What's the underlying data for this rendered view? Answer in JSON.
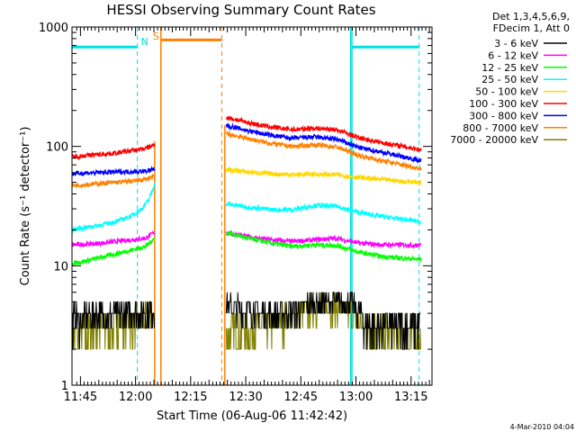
{
  "chart_data": {
    "type": "line",
    "title": "HESSI Observing Summary Count Rates",
    "xlabel": "Start Time (06-Aug-06 11:42:42)",
    "ylabel": "Count Rate (s⁻¹ detector⁻¹)",
    "ylim": [
      1,
      1000
    ],
    "yscale": "log",
    "xlim_minutes_after_11_42_42": [
      0,
      98
    ],
    "xtick_labels": [
      "11:45",
      "12:00",
      "12:15",
      "12:30",
      "12:45",
      "13:00",
      "13:15"
    ],
    "xtick_minutes": [
      2.3,
      17.3,
      32.3,
      47.3,
      62.3,
      77.3,
      92.3
    ],
    "ytick_labels": [
      "1",
      "10",
      "100",
      "1000"
    ],
    "ytick_values": [
      1,
      10,
      100,
      1000
    ],
    "legend_header": [
      "Det 1,3,4,5,6,9,",
      "FDecim 1, Att 0"
    ],
    "legend_placement": "right",
    "footer": "4-Mar-2010 04:04",
    "flags": [
      {
        "label": "N",
        "color": "#00e0e0"
      },
      {
        "label": "S",
        "color": "#ff8000"
      }
    ],
    "series": [
      {
        "name": "3 - 6 keV",
        "color": "#000000",
        "segments": [
          {
            "x": [
              0,
              4,
              8,
              12,
              16,
              20,
              22.5
            ],
            "y": [
              3.6,
              3.7,
              3.8,
              3.9,
              4.0,
              4.1,
              4.3
            ]
          },
          {
            "x": [
              42,
              48,
              54,
              60,
              66,
              72,
              76,
              80,
              84,
              88,
              92,
              95
            ],
            "y": [
              4.5,
              4.3,
              4.0,
              4.2,
              4.8,
              5.0,
              4.8,
              3.2,
              3.3,
              3.2,
              3.3,
              3.3
            ]
          }
        ]
      },
      {
        "name": "6 - 12 keV",
        "color": "#ff00ff",
        "segments": [
          {
            "x": [
              0,
              4,
              8,
              12,
              16,
              20,
              22.5
            ],
            "y": [
              15.0,
              15.2,
              15.5,
              16.0,
              16.5,
              17.0,
              19.0
            ]
          },
          {
            "x": [
              42,
              48,
              54,
              60,
              66,
              72,
              78,
              84,
              90,
              95
            ],
            "y": [
              19.0,
              17.5,
              16.5,
              16.0,
              16.5,
              17.0,
              15.5,
              15.0,
              15.0,
              14.8
            ]
          }
        ]
      },
      {
        "name": "12 - 25 keV",
        "color": "#00ff00",
        "segments": [
          {
            "x": [
              0,
              4,
              8,
              12,
              16,
              20,
              22.5
            ],
            "y": [
              10.5,
              11.0,
              11.8,
              12.6,
              13.5,
              14.5,
              17.0
            ]
          },
          {
            "x": [
              42,
              48,
              54,
              60,
              66,
              72,
              78,
              84,
              90,
              95
            ],
            "y": [
              19.0,
              17.0,
              15.5,
              14.5,
              15.0,
              14.8,
              13.0,
              12.0,
              11.6,
              11.3
            ]
          }
        ]
      },
      {
        "name": "25 - 50 keV",
        "color": "#00ffff",
        "segments": [
          {
            "x": [
              0,
              4,
              8,
              12,
              16,
              19,
              21,
              22.5
            ],
            "y": [
              20.0,
              21.0,
              22.0,
              23.5,
              26.0,
              30.0,
              36.0,
              48.0
            ]
          },
          {
            "x": [
              42,
              48,
              54,
              60,
              66,
              72,
              78,
              84,
              90,
              95
            ],
            "y": [
              33.0,
              31.0,
              29.5,
              29.5,
              32.0,
              31.5,
              28.0,
              26.0,
              24.5,
              23.5
            ]
          }
        ]
      },
      {
        "name": "50 - 100 keV",
        "color": "#ffd700",
        "segments": [
          {
            "x": [
              42,
              48,
              54,
              60,
              66,
              72,
              78,
              84,
              90,
              95
            ],
            "y": [
              64.0,
              61.0,
              59.0,
              58.0,
              58.5,
              58.0,
              55.0,
              53.0,
              51.0,
              50.0
            ]
          }
        ]
      },
      {
        "name": "100 - 300 keV",
        "color": "#ff0000",
        "segments": [
          {
            "x": [
              0,
              4,
              8,
              12,
              16,
              20,
              22.5
            ],
            "y": [
              82.0,
              84.0,
              86.0,
              88.0,
              92.0,
              96.0,
              103.0
            ]
          },
          {
            "x": [
              42,
              48,
              54,
              60,
              66,
              72,
              78,
              84,
              90,
              95
            ],
            "y": [
              175.0,
              158.0,
              145.0,
              138.0,
              142.0,
              138.0,
              118.0,
              108.0,
              100.0,
              94.0
            ]
          }
        ]
      },
      {
        "name": "300 - 800 keV",
        "color": "#0000ff",
        "segments": [
          {
            "x": [
              0,
              4,
              8,
              12,
              16,
              20,
              22.5
            ],
            "y": [
              59.0,
              60.0,
              60.5,
              61.0,
              61.5,
              62.0,
              64.0
            ]
          },
          {
            "x": [
              42,
              48,
              54,
              60,
              66,
              72,
              78,
              84,
              90,
              95
            ],
            "y": [
              150.0,
              135.0,
              124.0,
              117.0,
              120.0,
              115.0,
              98.0,
              90.0,
              82.0,
              76.0
            ]
          }
        ]
      },
      {
        "name": "800 - 7000 keV",
        "color": "#ff8000",
        "segments": [
          {
            "x": [
              0,
              4,
              8,
              12,
              16,
              20,
              22.5
            ],
            "y": [
              47.0,
              48.0,
              49.0,
              50.0,
              51.0,
              53.0,
              56.0
            ]
          },
          {
            "x": [
              42,
              48,
              54,
              60,
              66,
              72,
              78,
              84,
              90,
              95
            ],
            "y": [
              128.0,
              116.0,
              106.0,
              100.0,
              103.0,
              99.0,
              84.0,
              76.0,
              70.0,
              65.0
            ]
          }
        ]
      },
      {
        "name": "7000 - 20000 keV",
        "color": "#808000",
        "segments": [
          {
            "x": [
              0,
              4,
              8,
              12,
              16,
              20,
              22.5
            ],
            "y": [
              2.6,
              2.8,
              3.0,
              3.3,
              3.4,
              3.5,
              3.6
            ]
          },
          {
            "x": [
              42,
              48,
              54,
              60,
              66,
              72,
              76,
              80,
              86,
              92,
              95
            ],
            "y": [
              2.8,
              3.0,
              3.3,
              3.8,
              4.5,
              4.6,
              4.0,
              2.8,
              2.6,
              2.6,
              2.6
            ]
          }
        ]
      }
    ]
  }
}
